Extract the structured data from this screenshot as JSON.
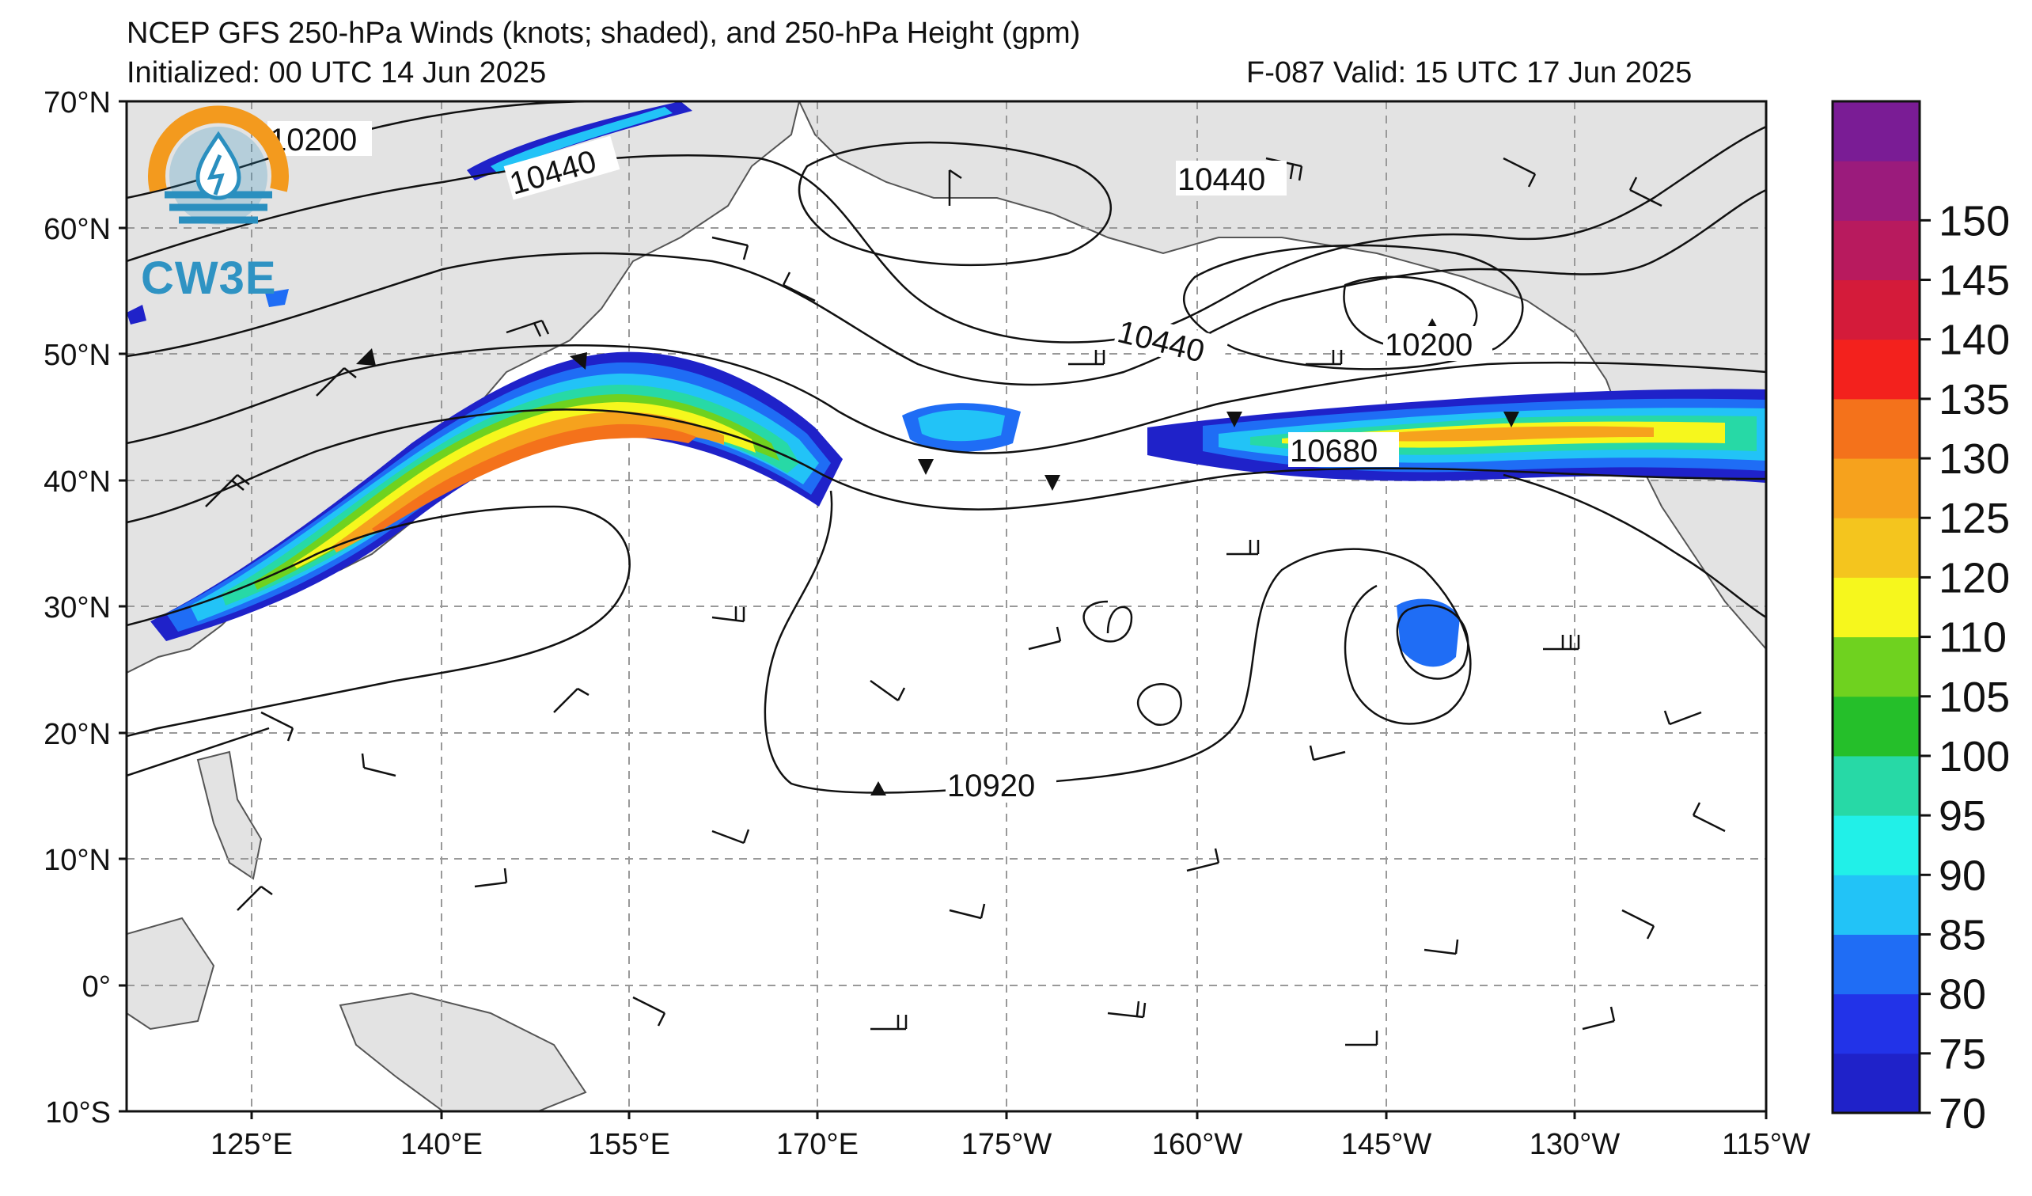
{
  "header": {
    "title": "NCEP GFS 250-hPa Winds (knots; shaded), and 250-hPa Height (gpm)",
    "initialized": "Initialized: 00 UTC 14 Jun 2025",
    "valid": "F-087  Valid: 15 UTC 17 Jun 2025"
  },
  "logo": {
    "text": "CW3E",
    "ring_color": "#f39a1e",
    "wave_color": "#2a8fbf",
    "icon": "water-drop-lightning-icon"
  },
  "axes": {
    "lat_labels": [
      "70°N",
      "60°N",
      "50°N",
      "40°N",
      "30°N",
      "20°N",
      "10°N",
      "0°",
      "10°S"
    ],
    "lon_labels": [
      "125°E",
      "140°E",
      "155°E",
      "170°E",
      "175°W",
      "160°W",
      "145°W",
      "130°W",
      "115°W"
    ]
  },
  "contour_labels": [
    "10200",
    "10440",
    "10440",
    "10440",
    "10200",
    "10680",
    "10920"
  ],
  "colorbar": {
    "ticks": [
      "70",
      "75",
      "80",
      "85",
      "90",
      "95",
      "100",
      "105",
      "110",
      "120",
      "125",
      "130",
      "135",
      "140",
      "145",
      "150"
    ],
    "colors": [
      "#1f22c9",
      "#2233e8",
      "#1f6df5",
      "#22c3f7",
      "#21f0e8",
      "#27d9a6",
      "#25bf2a",
      "#6fd21f",
      "#f6f71d",
      "#f4c51e",
      "#f6a21d",
      "#f4721b",
      "#f3211d",
      "#d41b3a",
      "#b81a5e",
      "#9b1b7c",
      "#7a1c95"
    ],
    "units": "knots"
  },
  "map": {
    "land_color": "#e3e3e3",
    "ocean_color": "#ffffff",
    "grid_color": "#999999",
    "jet_max_knots": 125
  }
}
